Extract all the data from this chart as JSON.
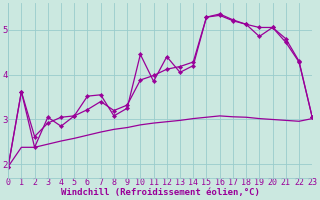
{
  "xlabel": "Windchill (Refroidissement éolien,°C)",
  "bg_color": "#cbe8e0",
  "line_color": "#990099",
  "grid_color": "#99cccc",
  "xmin": 0,
  "xmax": 23,
  "ymin": 1.7,
  "ymax": 5.6,
  "line1_x": [
    0,
    1,
    2,
    3,
    4,
    5,
    6,
    7,
    8,
    9,
    10,
    11,
    12,
    13,
    14,
    15,
    16,
    17,
    18,
    19,
    20,
    21,
    22,
    23
  ],
  "line1_y": [
    1.95,
    3.62,
    2.38,
    3.05,
    2.85,
    3.08,
    3.52,
    3.55,
    3.08,
    3.25,
    4.45,
    3.85,
    4.4,
    4.05,
    4.2,
    5.28,
    5.35,
    5.22,
    5.12,
    4.85,
    5.05,
    4.72,
    4.28,
    3.05
  ],
  "line2_x": [
    0,
    1,
    2,
    3,
    4,
    5,
    6,
    7,
    8,
    9,
    10,
    11,
    12,
    13,
    14,
    15,
    16,
    17,
    18,
    19,
    20,
    21,
    22,
    23
  ],
  "line2_y": [
    1.95,
    3.62,
    2.62,
    2.92,
    3.05,
    3.08,
    3.22,
    3.4,
    3.2,
    3.32,
    3.88,
    3.98,
    4.12,
    4.18,
    4.28,
    5.28,
    5.32,
    5.2,
    5.12,
    5.05,
    5.05,
    4.8,
    4.3,
    3.05
  ],
  "line3_x": [
    0,
    1,
    2,
    3,
    4,
    5,
    6,
    7,
    8,
    9,
    10,
    11,
    12,
    13,
    14,
    15,
    16,
    17,
    18,
    19,
    20,
    21,
    22,
    23
  ],
  "line3_y": [
    1.95,
    2.38,
    2.38,
    2.45,
    2.52,
    2.58,
    2.65,
    2.72,
    2.78,
    2.82,
    2.88,
    2.92,
    2.95,
    2.98,
    3.02,
    3.05,
    3.08,
    3.06,
    3.05,
    3.02,
    3.0,
    2.98,
    2.96,
    3.02
  ],
  "xticks": [
    0,
    1,
    2,
    3,
    4,
    5,
    6,
    7,
    8,
    9,
    10,
    11,
    12,
    13,
    14,
    15,
    16,
    17,
    18,
    19,
    20,
    21,
    22,
    23
  ],
  "yticks": [
    2,
    3,
    4,
    5
  ],
  "markersize": 2.2,
  "linewidth": 0.9,
  "xlabel_fontsize": 6.5,
  "tick_fontsize": 6.0
}
